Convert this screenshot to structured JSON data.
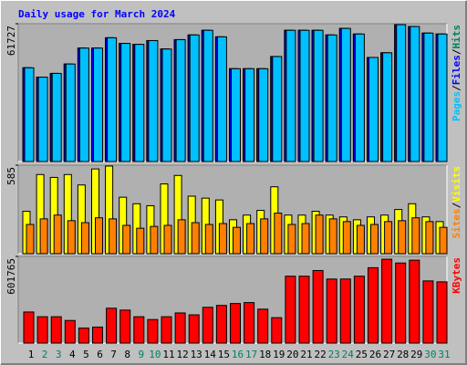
{
  "legend_separator": "/",
  "chart_data": [
    {
      "type": "bar",
      "title": "Daily usage for March 2024",
      "ylim": [
        0,
        61727
      ],
      "yticks": [
        61727
      ],
      "series": [
        {
          "name": "Hits",
          "color": "#00805c",
          "values": [
            41990,
            37790,
            39470,
            43670,
            50810,
            50810,
            55430,
            52910,
            52490,
            54170,
            50390,
            54590,
            56690,
            58780,
            55850,
            41570,
            41570,
            41570,
            47030,
            58780,
            58780,
            58780,
            56690,
            59630,
            57110,
            46610,
            48710,
            61300,
            60460,
            57530,
            57110
          ]
        },
        {
          "name": "Files",
          "color": "#0000ff",
          "values": [
            41990,
            37790,
            39470,
            43670,
            50810,
            50810,
            55430,
            52910,
            52490,
            54170,
            50390,
            54590,
            56690,
            58780,
            55850,
            41570,
            41570,
            41570,
            47030,
            58780,
            58780,
            58780,
            56690,
            59630,
            57110,
            46610,
            48710,
            61300,
            60460,
            57530,
            57110
          ]
        },
        {
          "name": "Pages",
          "color": "#00c0ff",
          "values": [
            41990,
            37790,
            39470,
            43670,
            50810,
            50810,
            55430,
            52910,
            52490,
            54170,
            50390,
            54590,
            56690,
            58780,
            55850,
            41570,
            41570,
            41570,
            47030,
            58780,
            58780,
            58780,
            56690,
            59630,
            57110,
            46610,
            48710,
            61300,
            60460,
            57530,
            57110
          ]
        }
      ]
    },
    {
      "type": "bar",
      "ylim": [
        0,
        585
      ],
      "yticks": [
        585
      ],
      "series": [
        {
          "name": "Visits",
          "color": "#ffff00",
          "values": [
            280,
            523,
            504,
            523,
            454,
            560,
            579,
            373,
            330,
            317,
            461,
            517,
            380,
            367,
            355,
            224,
            255,
            286,
            442,
            255,
            255,
            280,
            255,
            243,
            224,
            243,
            255,
            292,
            330,
            243,
            212
          ]
        },
        {
          "name": "Sites",
          "color": "#ff8000",
          "values": [
            193,
            230,
            255,
            218,
            205,
            237,
            230,
            187,
            168,
            180,
            187,
            224,
            205,
            193,
            199,
            174,
            199,
            230,
            268,
            193,
            199,
            255,
            230,
            212,
            187,
            193,
            212,
            218,
            237,
            212,
            174
          ]
        }
      ]
    },
    {
      "type": "bar",
      "ylim": [
        0,
        601765
      ],
      "yticks": [
        601765
      ],
      "categories": [
        "1",
        "2",
        "3",
        "4",
        "5",
        "6",
        "7",
        "8",
        "9",
        "10",
        "11",
        "12",
        "13",
        "14",
        "15",
        "16",
        "17",
        "18",
        "19",
        "20",
        "21",
        "22",
        "23",
        "24",
        "25",
        "26",
        "27",
        "28",
        "29",
        "30",
        "31"
      ],
      "label_colors": [
        "#000000",
        "#00805c",
        "#00805c",
        "#000000",
        "#000000",
        "#000000",
        "#000000",
        "#000000",
        "#00805c",
        "#00805c",
        "#000000",
        "#000000",
        "#000000",
        "#000000",
        "#000000",
        "#00805c",
        "#00805c",
        "#000000",
        "#000000",
        "#000000",
        "#000000",
        "#000000",
        "#00805c",
        "#00805c",
        "#000000",
        "#000000",
        "#000000",
        "#000000",
        "#000000",
        "#00805c",
        "#00805c"
      ],
      "series": [
        {
          "name": "KBytes",
          "color": "#ff0000",
          "values": [
            215850,
            183150,
            183150,
            156980,
            104650,
            111190,
            242010,
            228930,
            183150,
            163520,
            183150,
            209310,
            196230,
            248550,
            261640,
            274720,
            281260,
            235470,
            176600,
            464400,
            464400,
            503650,
            444780,
            444780,
            464400,
            523270,
            582140,
            555980,
            575600,
            431700,
            425160
          ]
        }
      ]
    }
  ]
}
